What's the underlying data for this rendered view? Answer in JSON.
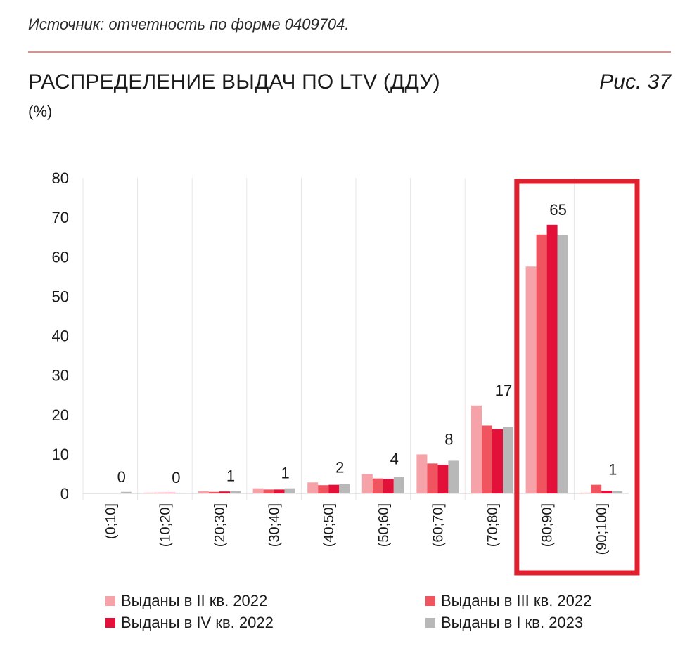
{
  "header": {
    "source": "Источник: отчетность по форме 0409704.",
    "title": "РАСПРЕДЕЛЕНИЕ ВЫДАЧ ПО LTV (ДДУ)",
    "unit": "(%)",
    "figure_label": "Рис. 37"
  },
  "colors": {
    "series": [
      "#f5a3a8",
      "#f0555f",
      "#e3103a",
      "#b8b8b8"
    ],
    "highlight_box": "#e0202e",
    "grid": "#e6e6e6"
  },
  "chart_data": {
    "type": "bar",
    "categories": [
      "(0;10]",
      "(10;20]",
      "(20;30]",
      "(30;40]",
      "(40;50]",
      "(50;60]",
      "(60;70]",
      "(70;80]",
      "(80;90]",
      "(90;100]"
    ],
    "series": [
      {
        "name": "Выданы в II кв. 2022",
        "values": [
          0,
          0.2,
          0.6,
          1.3,
          2.8,
          4.9,
          9.9,
          22.3,
          57.5,
          0.2
        ]
      },
      {
        "name": "Выданы в III кв. 2022",
        "values": [
          0,
          0.2,
          0.4,
          1.0,
          2.1,
          3.8,
          7.6,
          17.2,
          65.6,
          2.2
        ]
      },
      {
        "name": "Выданы в IV кв. 2022",
        "values": [
          0,
          0.2,
          0.5,
          1.0,
          2.2,
          3.7,
          7.3,
          16.3,
          68.1,
          0.7
        ]
      },
      {
        "name": "Выданы в I кв. 2023",
        "values": [
          0.4,
          0.1,
          0.6,
          1.3,
          2.4,
          4.2,
          8.3,
          16.8,
          65.4,
          0.6
        ]
      }
    ],
    "data_labels": [
      "0",
      "0",
      "1",
      "1",
      "2",
      "4",
      "8",
      "17",
      "65",
      "1"
    ],
    "y_ticks": [
      "0",
      "10",
      "20",
      "30",
      "40",
      "50",
      "60",
      "70",
      "80"
    ],
    "ylim": [
      0,
      80
    ],
    "grid": "vertical separators between categories",
    "legend": "bottom",
    "highlighted_categories": [
      "(80;90]",
      "(90;100]"
    ]
  }
}
